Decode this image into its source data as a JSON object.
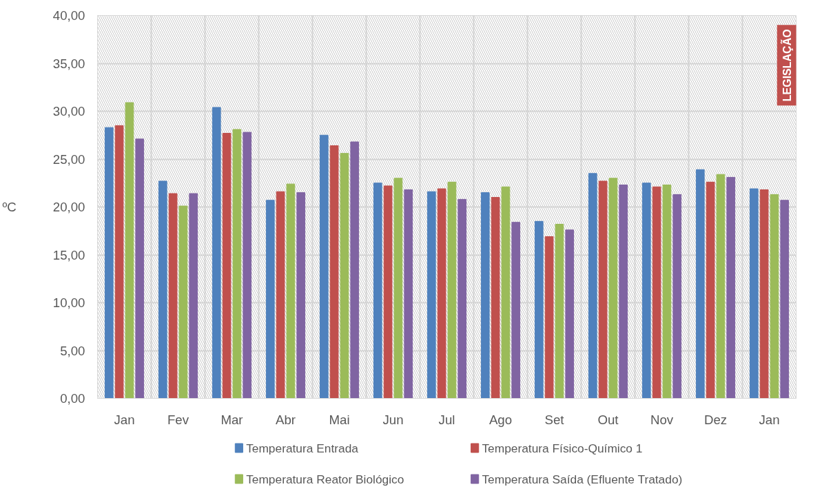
{
  "chart_data": {
    "type": "bar",
    "ylabel": "ºC",
    "categories": [
      "Jan",
      "Fev",
      "Mar",
      "Abr",
      "Mai",
      "Jun",
      "Jul",
      "Ago",
      "Set",
      "Out",
      "Nov",
      "Dez",
      "Jan"
    ],
    "series": [
      {
        "name": "Temperatura Entrada",
        "color": "#4f81bd",
        "values": [
          28.3,
          22.7,
          30.4,
          20.7,
          27.5,
          22.5,
          21.6,
          21.5,
          18.5,
          23.5,
          22.5,
          23.9,
          21.9
        ]
      },
      {
        "name": "Temperatura Físico-Químico 1",
        "color": "#c0504d",
        "values": [
          28.5,
          21.4,
          27.7,
          21.6,
          26.4,
          22.2,
          21.9,
          21.0,
          16.9,
          22.7,
          22.1,
          22.6,
          21.8
        ]
      },
      {
        "name": "Temperatura Reator Biológico",
        "color": "#9bbb59",
        "values": [
          30.9,
          20.1,
          28.1,
          22.4,
          25.6,
          23.0,
          22.6,
          22.1,
          18.2,
          23.0,
          22.3,
          23.4,
          21.3
        ]
      },
      {
        "name": "Temperatura Saída (Efluente Tratado)",
        "color": "#8064a2",
        "values": [
          27.1,
          21.4,
          27.8,
          21.5,
          26.8,
          21.8,
          20.8,
          18.4,
          17.6,
          22.3,
          21.3,
          23.1,
          20.7
        ]
      }
    ],
    "ylim": [
      0,
      40
    ],
    "yticks": [
      {
        "value": 0,
        "label": "0,00"
      },
      {
        "value": 5,
        "label": "5,00"
      },
      {
        "value": 10,
        "label": "10,00"
      },
      {
        "value": 15,
        "label": "15,00"
      },
      {
        "value": 20,
        "label": "20,00"
      },
      {
        "value": 25,
        "label": "25,00"
      },
      {
        "value": 30,
        "label": "30,00"
      },
      {
        "value": 35,
        "label": "35,00"
      },
      {
        "value": 40,
        "label": "40,00"
      }
    ],
    "bands": [
      {
        "axis": "y",
        "from": 0,
        "to": 40,
        "label": "LEGISLAÇÃO",
        "color": "#c0504d"
      }
    ],
    "grid": true,
    "legend": "bottom"
  }
}
